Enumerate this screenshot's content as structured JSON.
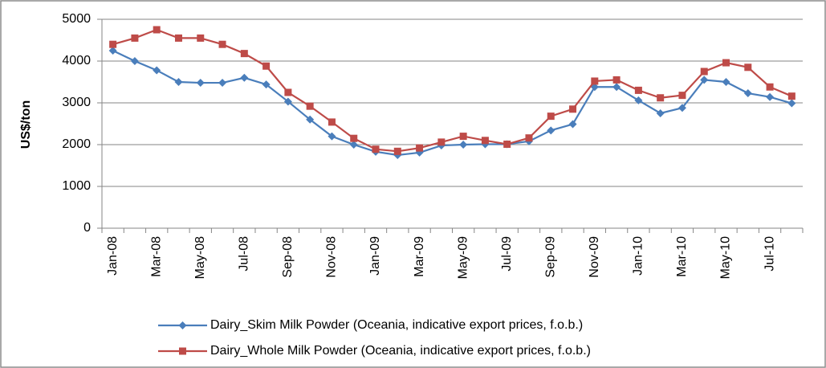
{
  "chart_data": {
    "type": "line",
    "y_label": "US$/ton",
    "categories": [
      "Jan-08",
      null,
      "Mar-08",
      null,
      "May-08",
      null,
      "Jul-08",
      null,
      "Sep-08",
      null,
      "Nov-08",
      null,
      "Jan-09",
      null,
      "Mar-09",
      null,
      "May-09",
      null,
      "Jul-09",
      null,
      "Sep-09",
      null,
      "Nov-09",
      null,
      "Jan-10",
      null,
      "Mar-10",
      null,
      "May-10",
      null,
      "Jul-10",
      null
    ],
    "series": [
      {
        "name": "Dairy_Skim Milk Powder (Oceania, indicative export prices, f.o.b.)",
        "color": "#4a7ebb",
        "marker": "diamond",
        "values": [
          4250,
          4000,
          3780,
          3500,
          3480,
          3480,
          3600,
          3440,
          3030,
          2600,
          2200,
          2000,
          1830,
          1750,
          1810,
          1980,
          2000,
          2010,
          2010,
          2080,
          2340,
          2490,
          3380,
          3380,
          3060,
          2750,
          2880,
          3550,
          3500,
          3230,
          3140,
          2990
        ]
      },
      {
        "name": "Dairy_Whole Milk Powder (Oceania, indicative export prices, f.o.b.)",
        "color": "#be4b48",
        "marker": "square",
        "values": [
          4400,
          4550,
          4750,
          4550,
          4550,
          4400,
          4180,
          3880,
          3250,
          2920,
          2540,
          2150,
          1890,
          1840,
          1920,
          2060,
          2200,
          2100,
          2010,
          2160,
          2680,
          2850,
          3520,
          3550,
          3300,
          3120,
          3180,
          3750,
          3960,
          3850,
          3380,
          3160
        ]
      }
    ],
    "ylim": [
      0,
      5000
    ],
    "yticks": [
      0,
      1000,
      2000,
      3000,
      4000,
      5000
    ],
    "grid": true
  }
}
